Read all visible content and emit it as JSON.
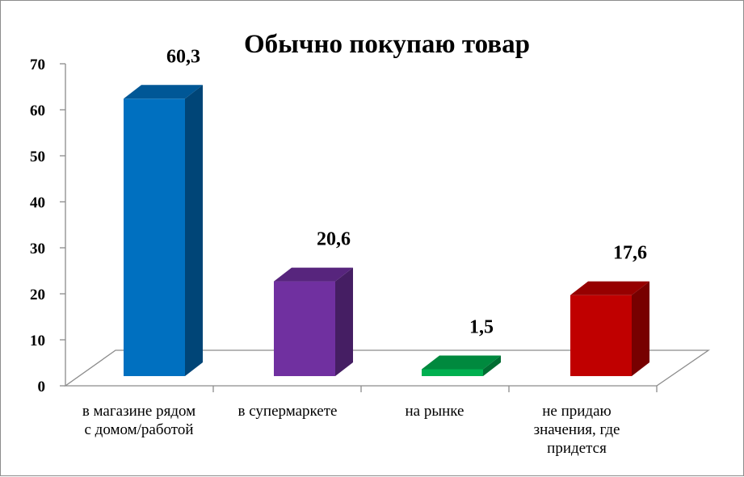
{
  "chart_data": {
    "type": "bar",
    "title": "Обычно покупаю товар",
    "categories": [
      [
        "в магазине рядом",
        "с домом/работой"
      ],
      [
        "в супермаркете"
      ],
      [
        "на рынке"
      ],
      [
        "не придаю",
        "значения, где",
        "придется"
      ]
    ],
    "values": [
      60.3,
      20.6,
      1.5,
      17.6
    ],
    "value_labels": [
      "60,3",
      "20,6",
      "1,5",
      "17,6"
    ],
    "colors": [
      "#0070c0",
      "#7030a0",
      "#00b050",
      "#c00000"
    ],
    "ylim": [
      0,
      70
    ],
    "yticks": [
      "0",
      "10",
      "20",
      "30",
      "40",
      "50",
      "60",
      "70"
    ],
    "grid": false,
    "legend": "none",
    "style": "3d-column"
  }
}
